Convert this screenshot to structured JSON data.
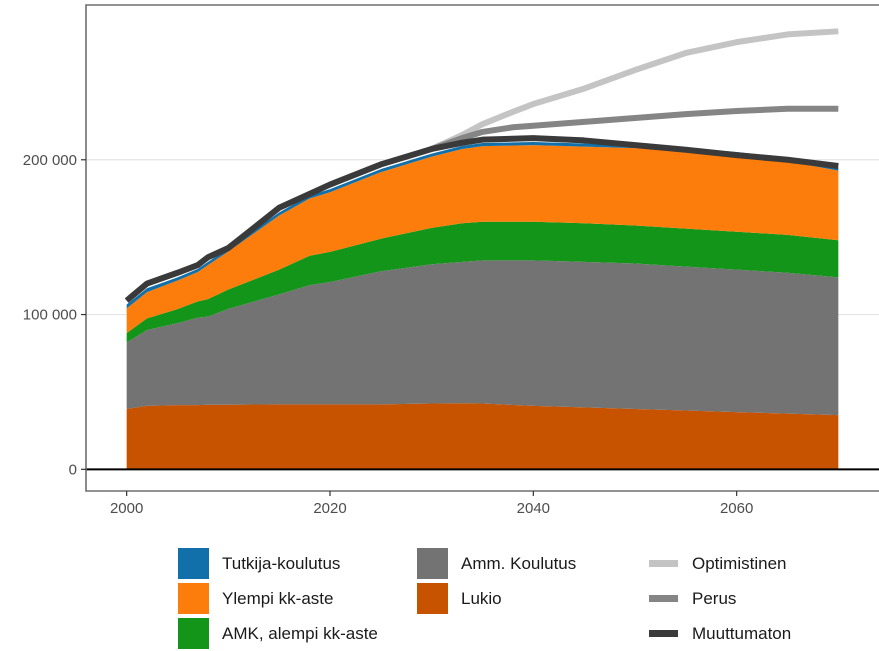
{
  "chart_data": {
    "type": "area",
    "title": "",
    "xlabel": "",
    "ylabel": "",
    "xlim": [
      1996,
      2074
    ],
    "ylim": [
      -14000,
      300000
    ],
    "x_ticks": [
      2000,
      2020,
      2040,
      2060
    ],
    "y_ticks": [
      0,
      100000,
      200000
    ],
    "x_tick_labels": [
      "2000",
      "2020",
      "2040",
      "2060"
    ],
    "y_tick_labels": [
      "0",
      "100 000",
      "200 000"
    ],
    "grid": true,
    "legend_position": "bottom",
    "x": [
      2000,
      2002,
      2005,
      2007,
      2008,
      2010,
      2015,
      2018,
      2020,
      2025,
      2030,
      2033,
      2035,
      2040,
      2045,
      2050,
      2055,
      2060,
      2065,
      2070
    ],
    "stacked_series": [
      {
        "name": "Lukio",
        "color": "#c75300",
        "values": [
          39000,
          41000,
          41500,
          41500,
          41700,
          41700,
          42000,
          42000,
          42000,
          42000,
          42500,
          42700,
          42500,
          41000,
          40000,
          39000,
          38000,
          37000,
          36000,
          35000
        ]
      },
      {
        "name": "Amm. Koulutus",
        "color": "#737373",
        "values": [
          43000,
          49000,
          53000,
          56500,
          57000,
          62000,
          71000,
          77000,
          79000,
          86000,
          90000,
          91300,
          92500,
          94000,
          94000,
          94000,
          93000,
          92000,
          91000,
          89000
        ]
      },
      {
        "name": "AMK, alempi kk-aste",
        "color": "#13951a",
        "values": [
          6000,
          7500,
          9000,
          10500,
          11300,
          12500,
          16000,
          19000,
          19500,
          21000,
          23500,
          25000,
          25000,
          25000,
          25000,
          24500,
          24500,
          24500,
          24500,
          24000
        ]
      },
      {
        "name": "Ylempi kk-aste",
        "color": "#fc7d0b",
        "values": [
          16000,
          17000,
          18500,
          19000,
          22000,
          24500,
          35000,
          37000,
          38500,
          43000,
          46000,
          48000,
          48800,
          49500,
          49500,
          50000,
          50000,
          49500,
          47500,
          45000
        ]
      },
      {
        "name": "Tutkija-koulutus",
        "color": "#1170aa",
        "values": [
          2500,
          2500,
          2000,
          2000,
          2000,
          2000,
          2000,
          2000,
          2000,
          2000,
          2000,
          2000,
          2000,
          2000,
          2000,
          2000,
          2000,
          2000,
          2000,
          2000
        ]
      }
    ],
    "lines": [
      {
        "name": "Muuttumaton",
        "color": "#3a3a3a",
        "x": [
          2000,
          2002,
          2005,
          2007,
          2008,
          2010,
          2015,
          2018,
          2020,
          2025,
          2030,
          2033,
          2035,
          2040,
          2045,
          2050,
          2055,
          2060,
          2065,
          2070
        ],
        "values": [
          109000,
          120000,
          127000,
          132000,
          137000,
          143000,
          169000,
          178000,
          184000,
          197000,
          207000,
          211000,
          213000,
          214000,
          212500,
          209500,
          206500,
          203000,
          200000,
          196000
        ]
      },
      {
        "name": "Perus",
        "color": "#858585",
        "x": [
          2030,
          2033,
          2035,
          2038,
          2040,
          2045,
          2050,
          2055,
          2060,
          2065,
          2070
        ],
        "values": [
          207000,
          214000,
          218000,
          221000,
          222000,
          224500,
          227000,
          229500,
          231500,
          233000,
          233000
        ]
      },
      {
        "name": "Optimistinen",
        "color": "#c4c4c4",
        "x": [
          2030,
          2033,
          2035,
          2038,
          2040,
          2045,
          2050,
          2055,
          2060,
          2065,
          2070
        ],
        "values": [
          207000,
          216000,
          223000,
          231000,
          236000,
          246000,
          258000,
          269000,
          276000,
          281000,
          283000
        ]
      }
    ]
  },
  "legend": {
    "col1": [
      {
        "label": "Tutkija-koulutus",
        "color": "#1170aa"
      },
      {
        "label": "Ylempi kk-aste",
        "color": "#fc7d0b"
      },
      {
        "label": "AMK, alempi kk-aste",
        "color": "#13951a"
      }
    ],
    "col2": [
      {
        "label": "Amm. Koulutus",
        "color": "#737373"
      },
      {
        "label": "Lukio",
        "color": "#c75300"
      }
    ],
    "col3": [
      {
        "label": "Optimistinen",
        "color": "#c4c4c4"
      },
      {
        "label": "Perus",
        "color": "#858585"
      },
      {
        "label": "Muuttumaton",
        "color": "#3a3a3a"
      }
    ]
  }
}
